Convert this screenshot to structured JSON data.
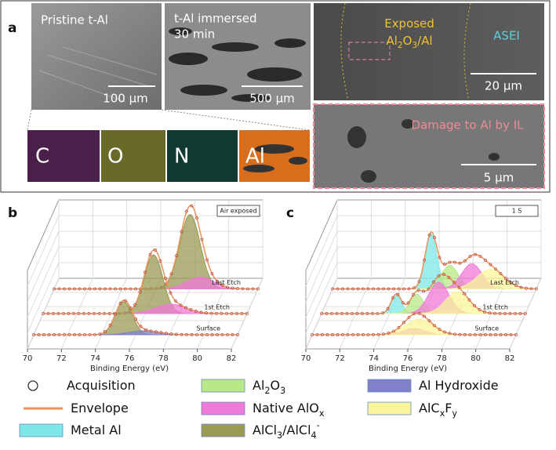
{
  "panel_a": {
    "label": "a",
    "images": [
      {
        "caption": [
          "Pristine t-Al"
        ],
        "scale": "100 µm"
      },
      {
        "caption": [
          "t-Al immersed",
          "30 min"
        ],
        "scale": "500 µm"
      }
    ],
    "maps": [
      "C",
      "O",
      "N",
      "Al"
    ],
    "sem_overview": {
      "region": [
        [
          "Exposed"
        ],
        [
          "Al",
          {
            "sub": "2"
          },
          "O",
          {
            "sub": "3"
          },
          "/Al"
        ]
      ],
      "asei": "ASEI",
      "scale": "20 µm"
    },
    "sem_zoom": {
      "caption": "Damage to Al by IL",
      "scale": "5 µm"
    }
  },
  "plots": [
    {
      "label": "b",
      "tag": "Air exposed",
      "xlabel": "Binding Energy (eV)",
      "xlim": [
        70,
        82
      ],
      "xticks": [
        70,
        72,
        74,
        76,
        78,
        80,
        82
      ],
      "rows": [
        {
          "label": "Last Etch",
          "peaks": [
            {
              "center": 78,
              "height": 95,
              "width": 0.6,
              "color": "#9a9a55"
            },
            {
              "center": 78.6,
              "height": 15,
              "width": 0.8,
              "color": "#f07ad8"
            }
          ]
        },
        {
          "label": "1st Etch",
          "peaks": [
            {
              "center": 76.5,
              "height": 75,
              "width": 0.55,
              "color": "#9a9a55"
            },
            {
              "center": 77.5,
              "height": 12,
              "width": 0.9,
              "color": "#f07ad8"
            }
          ]
        },
        {
          "label": "Surface",
          "peaks": [
            {
              "center": 75.3,
              "height": 42,
              "width": 0.5,
              "color": "#9a9a55"
            },
            {
              "center": 76.5,
              "height": 5,
              "width": 0.9,
              "color": "#8080cc"
            }
          ]
        }
      ]
    },
    {
      "label": "c",
      "tag": "1 S",
      "xlabel": "Binding Energy (eV)",
      "xlim": [
        70,
        82
      ],
      "xticks": [
        70,
        72,
        74,
        76,
        78,
        80,
        82
      ],
      "rows": [
        {
          "label": "Last Etch",
          "peaks": [
            {
              "center": 75.8,
              "height": 70,
              "width": 0.35,
              "color": "#7ee8e8"
            },
            {
              "center": 76.9,
              "height": 30,
              "width": 0.5,
              "color": "#b8e986"
            },
            {
              "center": 78.2,
              "height": 32,
              "width": 0.6,
              "color": "#f07ad8"
            },
            {
              "center": 79.3,
              "height": 25,
              "width": 0.8,
              "color": "#f8f59a"
            }
          ]
        },
        {
          "label": "1st Etch",
          "peaks": [
            {
              "center": 74.4,
              "height": 25,
              "width": 0.3,
              "color": "#7ee8e8"
            },
            {
              "center": 75.6,
              "height": 25,
              "width": 0.4,
              "color": "#b8e986"
            },
            {
              "center": 76.9,
              "height": 40,
              "width": 0.6,
              "color": "#f07ad8"
            },
            {
              "center": 78,
              "height": 28,
              "width": 0.7,
              "color": "#f8f59a"
            }
          ]
        },
        {
          "label": "Surface",
          "peaks": [
            {
              "center": 76,
              "height": 8,
              "width": 0.6,
              "color": "#f07ad8"
            },
            {
              "center": 76.3,
              "height": 20,
              "width": 0.8,
              "color": "#f8f59a"
            }
          ]
        }
      ]
    }
  ],
  "legend": [
    {
      "label": [
        "Acquisition"
      ],
      "marker": "circle",
      "color": "#333333"
    },
    {
      "label": [
        "Envelope"
      ],
      "marker": "line",
      "color": "#e8935a"
    },
    {
      "label": [
        "Metal Al"
      ],
      "marker": "fill",
      "color": "#7ee8e8"
    },
    {
      "label": [
        "Al",
        {
          "sub": "2"
        },
        "O",
        {
          "sub": "3"
        }
      ],
      "marker": "fill",
      "color": "#b8e986"
    },
    {
      "label": [
        "Native AlO",
        {
          "sub": "x"
        }
      ],
      "marker": "fill",
      "color": "#f07ad8"
    },
    {
      "label": [
        "AlCl",
        {
          "sub": "3"
        },
        "/AlCl",
        {
          "sub": "4"
        },
        {
          "sup": "-"
        }
      ],
      "marker": "fill",
      "color": "#9a9a55"
    },
    {
      "label": [
        "Al Hydroxide"
      ],
      "marker": "fill",
      "color": "#8080cc"
    },
    {
      "label": [
        "AlC",
        {
          "sub": "x"
        },
        "F",
        {
          "sub": "y"
        }
      ],
      "marker": "fill",
      "color": "#f8f59a"
    }
  ]
}
